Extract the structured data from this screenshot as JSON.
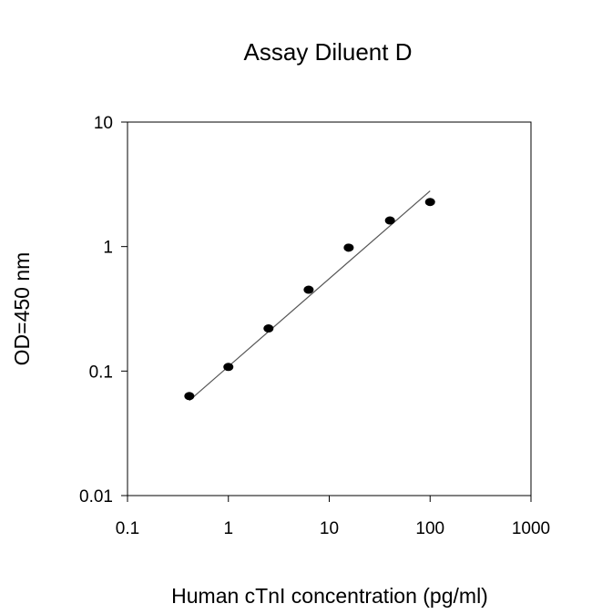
{
  "chart_data": {
    "type": "scatter",
    "title": "Assay Diluent D",
    "xlabel": "Human cTnI concentration (pg/ml)",
    "ylabel": "OD=450 nm",
    "x_scale": "log",
    "y_scale": "log",
    "xlim": [
      0.1,
      1000
    ],
    "ylim": [
      0.01,
      10
    ],
    "x_ticks": [
      0.1,
      1,
      10,
      100,
      1000
    ],
    "x_tick_labels": [
      "0.1",
      "1",
      "10",
      "100",
      "1000"
    ],
    "y_ticks": [
      0.01,
      0.1,
      1,
      10
    ],
    "y_tick_labels": [
      "0.01",
      "0.1",
      "1",
      "10"
    ],
    "grid": false,
    "series": [
      {
        "points": [
          {
            "x": 0.41,
            "y": 0.063
          },
          {
            "x": 1.0,
            "y": 0.108
          },
          {
            "x": 2.5,
            "y": 0.22
          },
          {
            "x": 6.25,
            "y": 0.45
          },
          {
            "x": 15.6,
            "y": 0.98
          },
          {
            "x": 40,
            "y": 1.62
          },
          {
            "x": 100,
            "y": 2.28
          }
        ],
        "color": "#000000"
      }
    ],
    "fit_line": {
      "x": [
        0.41,
        100
      ],
      "y": [
        0.058,
        2.8
      ],
      "color": "#555555"
    }
  }
}
